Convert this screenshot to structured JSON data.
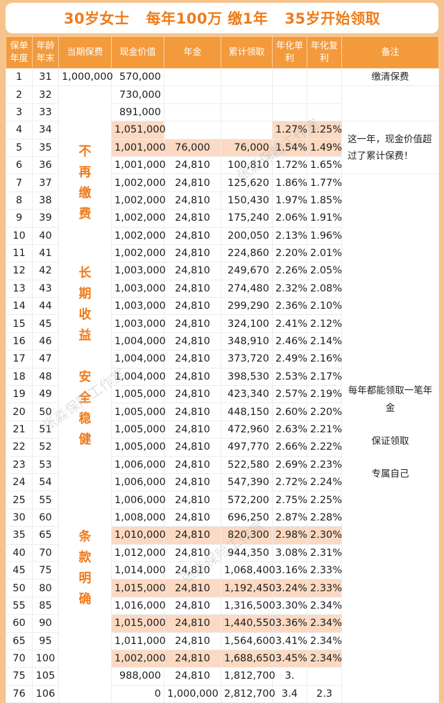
{
  "title": {
    "part1": "30岁女士",
    "part2": "每年100万 缴1年",
    "part3": "35岁开始领取"
  },
  "headers": {
    "year": "保单年度",
    "age": "年龄年末",
    "premium": "当期保费",
    "cash_value": "现金价值",
    "annuity": "年金",
    "cumulative": "累计领取",
    "simple": "年化单利",
    "compound": "年化复利",
    "notes": "备注"
  },
  "rows": [
    {
      "year": "1",
      "age": "31",
      "premium": "1,000,000",
      "cash": "570,000",
      "annuity": "",
      "cum": "",
      "simple": "",
      "comp": ""
    },
    {
      "year": "2",
      "age": "32",
      "premium": "",
      "cash": "730,000",
      "annuity": "",
      "cum": "",
      "simple": "",
      "comp": ""
    },
    {
      "year": "3",
      "age": "33",
      "premium": "",
      "cash": "891,000",
      "annuity": "",
      "cum": "",
      "simple": "",
      "comp": ""
    },
    {
      "year": "4",
      "age": "34",
      "premium": "",
      "cash": "1,051,000",
      "annuity": "",
      "cum": "",
      "simple": "1.27%",
      "comp": "1.25%"
    },
    {
      "year": "5",
      "age": "35",
      "premium": "",
      "cash": "1,001,000",
      "annuity": "76,000",
      "cum": "76,000",
      "simple": "1.54%",
      "comp": "1.49%"
    },
    {
      "year": "6",
      "age": "36",
      "premium": "",
      "cash": "1,001,000",
      "annuity": "24,810",
      "cum": "100,810",
      "simple": "1.72%",
      "comp": "1.65%"
    },
    {
      "year": "7",
      "age": "37",
      "premium": "",
      "cash": "1,002,000",
      "annuity": "24,810",
      "cum": "125,620",
      "simple": "1.86%",
      "comp": "1.77%"
    },
    {
      "year": "8",
      "age": "38",
      "premium": "",
      "cash": "1,002,000",
      "annuity": "24,810",
      "cum": "150,430",
      "simple": "1.97%",
      "comp": "1.85%"
    },
    {
      "year": "9",
      "age": "39",
      "premium": "",
      "cash": "1,002,000",
      "annuity": "24,810",
      "cum": "175,240",
      "simple": "2.06%",
      "comp": "1.91%"
    },
    {
      "year": "10",
      "age": "40",
      "premium": "",
      "cash": "1,002,000",
      "annuity": "24,810",
      "cum": "200,050",
      "simple": "2.13%",
      "comp": "1.96%"
    },
    {
      "year": "11",
      "age": "41",
      "premium": "",
      "cash": "1,002,000",
      "annuity": "24,810",
      "cum": "224,860",
      "simple": "2.20%",
      "comp": "2.01%"
    },
    {
      "year": "12",
      "age": "42",
      "premium": "",
      "cash": "1,003,000",
      "annuity": "24,810",
      "cum": "249,670",
      "simple": "2.26%",
      "comp": "2.05%"
    },
    {
      "year": "13",
      "age": "43",
      "premium": "",
      "cash": "1,003,000",
      "annuity": "24,810",
      "cum": "274,480",
      "simple": "2.32%",
      "comp": "2.08%"
    },
    {
      "year": "14",
      "age": "44",
      "premium": "",
      "cash": "1,003,000",
      "annuity": "24,810",
      "cum": "299,290",
      "simple": "2.36%",
      "comp": "2.10%"
    },
    {
      "year": "15",
      "age": "45",
      "premium": "",
      "cash": "1,003,000",
      "annuity": "24,810",
      "cum": "324,100",
      "simple": "2.41%",
      "comp": "2.12%"
    },
    {
      "year": "16",
      "age": "46",
      "premium": "",
      "cash": "1,004,000",
      "annuity": "24,810",
      "cum": "348,910",
      "simple": "2.46%",
      "comp": "2.14%"
    },
    {
      "year": "17",
      "age": "47",
      "premium": "",
      "cash": "1,004,000",
      "annuity": "24,810",
      "cum": "373,720",
      "simple": "2.49%",
      "comp": "2.16%"
    },
    {
      "year": "18",
      "age": "48",
      "premium": "",
      "cash": "1,004,000",
      "annuity": "24,810",
      "cum": "398,530",
      "simple": "2.53%",
      "comp": "2.17%"
    },
    {
      "year": "19",
      "age": "49",
      "premium": "",
      "cash": "1,005,000",
      "annuity": "24,810",
      "cum": "423,340",
      "simple": "2.57%",
      "comp": "2.19%"
    },
    {
      "year": "20",
      "age": "50",
      "premium": "",
      "cash": "1,005,000",
      "annuity": "24,810",
      "cum": "448,150",
      "simple": "2.60%",
      "comp": "2.20%"
    },
    {
      "year": "21",
      "age": "51",
      "premium": "",
      "cash": "1,005,000",
      "annuity": "24,810",
      "cum": "472,960",
      "simple": "2.63%",
      "comp": "2.21%"
    },
    {
      "year": "22",
      "age": "52",
      "premium": "",
      "cash": "1,005,000",
      "annuity": "24,810",
      "cum": "497,770",
      "simple": "2.66%",
      "comp": "2.22%"
    },
    {
      "year": "23",
      "age": "53",
      "premium": "",
      "cash": "1,006,000",
      "annuity": "24,810",
      "cum": "522,580",
      "simple": "2.69%",
      "comp": "2.23%"
    },
    {
      "year": "24",
      "age": "54",
      "premium": "",
      "cash": "1,006,000",
      "annuity": "24,810",
      "cum": "547,390",
      "simple": "2.72%",
      "comp": "2.24%"
    },
    {
      "year": "25",
      "age": "55",
      "premium": "",
      "cash": "1,006,000",
      "annuity": "24,810",
      "cum": "572,200",
      "simple": "2.75%",
      "comp": "2.25%"
    },
    {
      "year": "30",
      "age": "60",
      "premium": "",
      "cash": "1,008,000",
      "annuity": "24,810",
      "cum": "696,250",
      "simple": "2.87%",
      "comp": "2.28%"
    },
    {
      "year": "35",
      "age": "65",
      "premium": "",
      "cash": "1,010,000",
      "annuity": "24,810",
      "cum": "820,300",
      "simple": "2.98%",
      "comp": "2.30%"
    },
    {
      "year": "40",
      "age": "70",
      "premium": "",
      "cash": "1,012,000",
      "annuity": "24,810",
      "cum": "944,350",
      "simple": "3.08%",
      "comp": "2.31%"
    },
    {
      "year": "45",
      "age": "75",
      "premium": "",
      "cash": "1,014,000",
      "annuity": "24,810",
      "cum": "1,068,400",
      "simple": "3.16%",
      "comp": "2.33%"
    },
    {
      "year": "50",
      "age": "80",
      "premium": "",
      "cash": "1,015,000",
      "annuity": "24,810",
      "cum": "1,192,450",
      "simple": "3.24%",
      "comp": "2.33%"
    },
    {
      "year": "55",
      "age": "85",
      "premium": "",
      "cash": "1,016,000",
      "annuity": "24,810",
      "cum": "1,316,500",
      "simple": "3.30%",
      "comp": "2.34%"
    },
    {
      "year": "60",
      "age": "90",
      "premium": "",
      "cash": "1,015,000",
      "annuity": "24,810",
      "cum": "1,440,550",
      "simple": "3.36%",
      "comp": "2.34%"
    },
    {
      "year": "65",
      "age": "95",
      "premium": "",
      "cash": "1,011,000",
      "annuity": "24,810",
      "cum": "1,564,600",
      "simple": "3.41%",
      "comp": "2.34%"
    },
    {
      "year": "70",
      "age": "100",
      "premium": "",
      "cash": "1,002,000",
      "annuity": "24,810",
      "cum": "1,688,650",
      "simple": "3.45%",
      "comp": "2.34%"
    },
    {
      "year": "75",
      "age": "105",
      "premium": "",
      "cash": "988,000",
      "annuity": "24,810",
      "cum": "1,812,700",
      "simple": "3.",
      "comp": ""
    },
    {
      "year": "76",
      "age": "106",
      "premium": "",
      "cash": "0",
      "annuity": "1,000,000",
      "cum": "2,812,700",
      "simple": "3.4",
      "comp": "2.3"
    }
  ],
  "premium_slogans": [
    [
      "不",
      "再",
      "缴",
      "费"
    ],
    [
      "长",
      "期",
      "收",
      "益"
    ],
    [
      "安",
      "全",
      "稳",
      "健"
    ],
    [
      "条",
      "款",
      "明",
      "确"
    ]
  ],
  "notes": {
    "paid_up": "缴清保费",
    "cash_exceeds": "这一年，现金价值超过了累计保费！",
    "annual": "每年都能领取一笔年金",
    "guaranteed": "保证领取",
    "own": "专属自己"
  },
  "watermark": "张淼保险工作室",
  "colors": {
    "background": "#f6c38c",
    "header": "#f39a3d",
    "title_text": "#f07a18",
    "highlight_row": "#fbd9c2"
  }
}
